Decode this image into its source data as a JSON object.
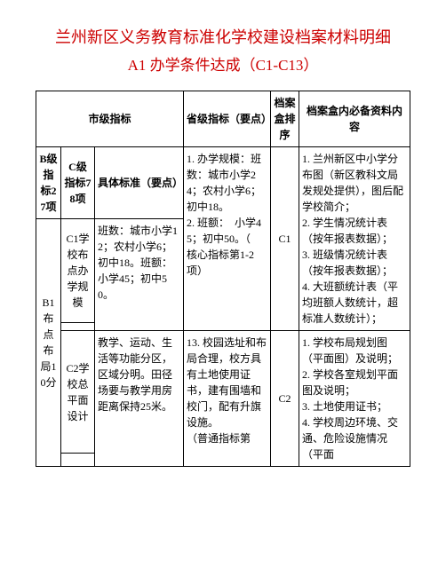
{
  "title_line1": "兰州新区义务教育标准化学校建设档案材料明细",
  "title_line2": "A1 办学条件达成（C1-C13）",
  "headers": {
    "city_indicator": "市级指标",
    "prov_indicator": "省级指标（要点）",
    "box_order": "档案盒排序",
    "content": "档案盒内必备资料内容",
    "b_level": "B级指标27项",
    "c_level": "C级指标78项",
    "spec_std": "具体标准（要点）"
  },
  "rows": {
    "b1": "B1布点布局10分",
    "c1": {
      "label": "C1学校布点办学规模",
      "std": "班数：城市小学12；农村小学6；初中18。班额：小学45；初中50。",
      "prov": "1. 办学规模：班数：城市小学24；农村小学6；初中18。\n2. 班额：　小学45；初中50。（　核心指标第1-2项）",
      "box": "C1",
      "content": "1. 兰州新区中小学分布图（新区教科文局发规处提供），图后配学校简介；\n2. 学生情况统计表（按年报表数据）；\n3. 班级情况统计表（按年报表数据）；\n4. 大班额统计表（平均班额人数统计，超标准人数统计）；"
    },
    "c2": {
      "label": "C2学校总平面设计",
      "std": "教学、运动、生活等功能分区，区域分明。田径场要与教学用房距离保持25米。",
      "prov": "13. 校园选址和布局合理，校方具有土地使用证书，建有围墙和校门，配有升旗设施。\n（普通指标第",
      "box": "C2",
      "content": "1. 学校布局规划图（平面图）及说明；\n2. 学校各室规划平面图及说明；\n3. 土地使用证书；\n4. 学校周边环境、交通、危险设施情况（平面"
    }
  }
}
